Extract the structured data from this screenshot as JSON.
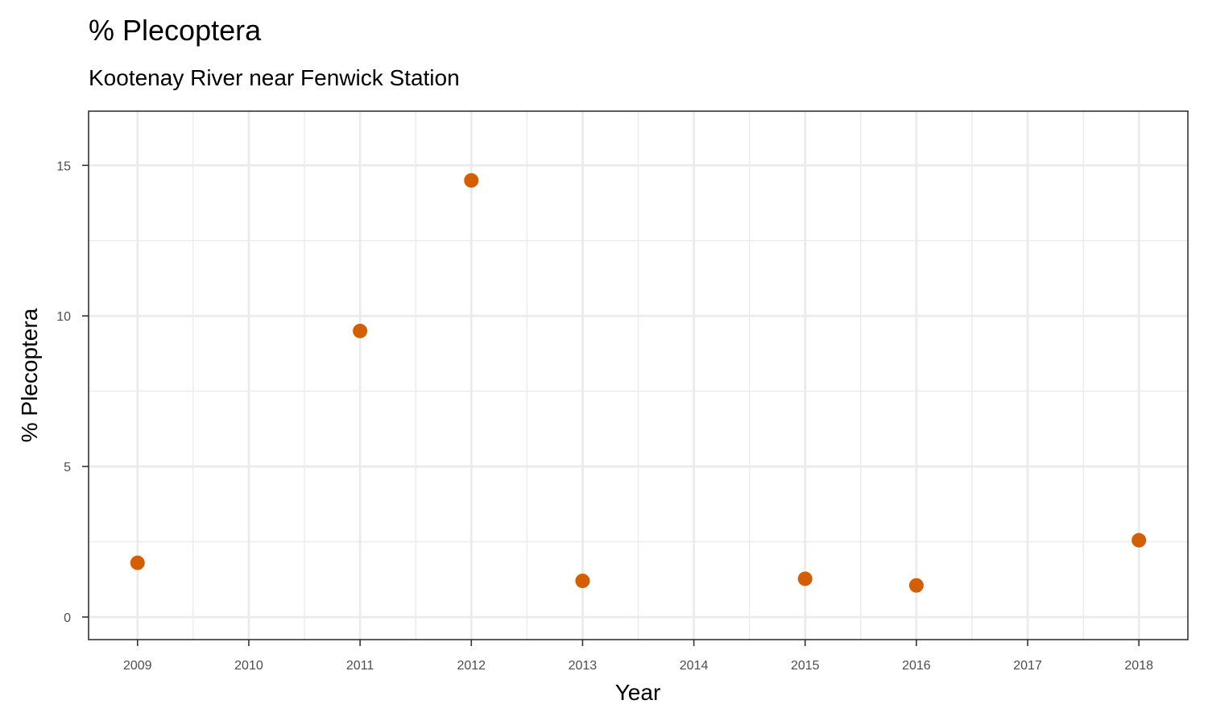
{
  "chart_data": {
    "type": "scatter",
    "title": "% Plecoptera",
    "subtitle": "Kootenay River near Fenwick Station",
    "xlabel": "Year",
    "ylabel": "% Plecoptera",
    "x_ticks": [
      2009,
      2010,
      2011,
      2012,
      2013,
      2014,
      2015,
      2016,
      2017,
      2018
    ],
    "y_ticks": [
      0,
      5,
      10,
      15
    ],
    "xlim": [
      2008.56,
      2018.44
    ],
    "ylim": [
      -0.75,
      16.8
    ],
    "grid": true,
    "point_color": "#D55E00",
    "series": [
      {
        "x": [
          2009,
          2011,
          2012,
          2013,
          2015,
          2016,
          2018
        ],
        "y": [
          1.8,
          9.5,
          14.5,
          1.2,
          1.27,
          1.05,
          2.55
        ]
      }
    ]
  }
}
